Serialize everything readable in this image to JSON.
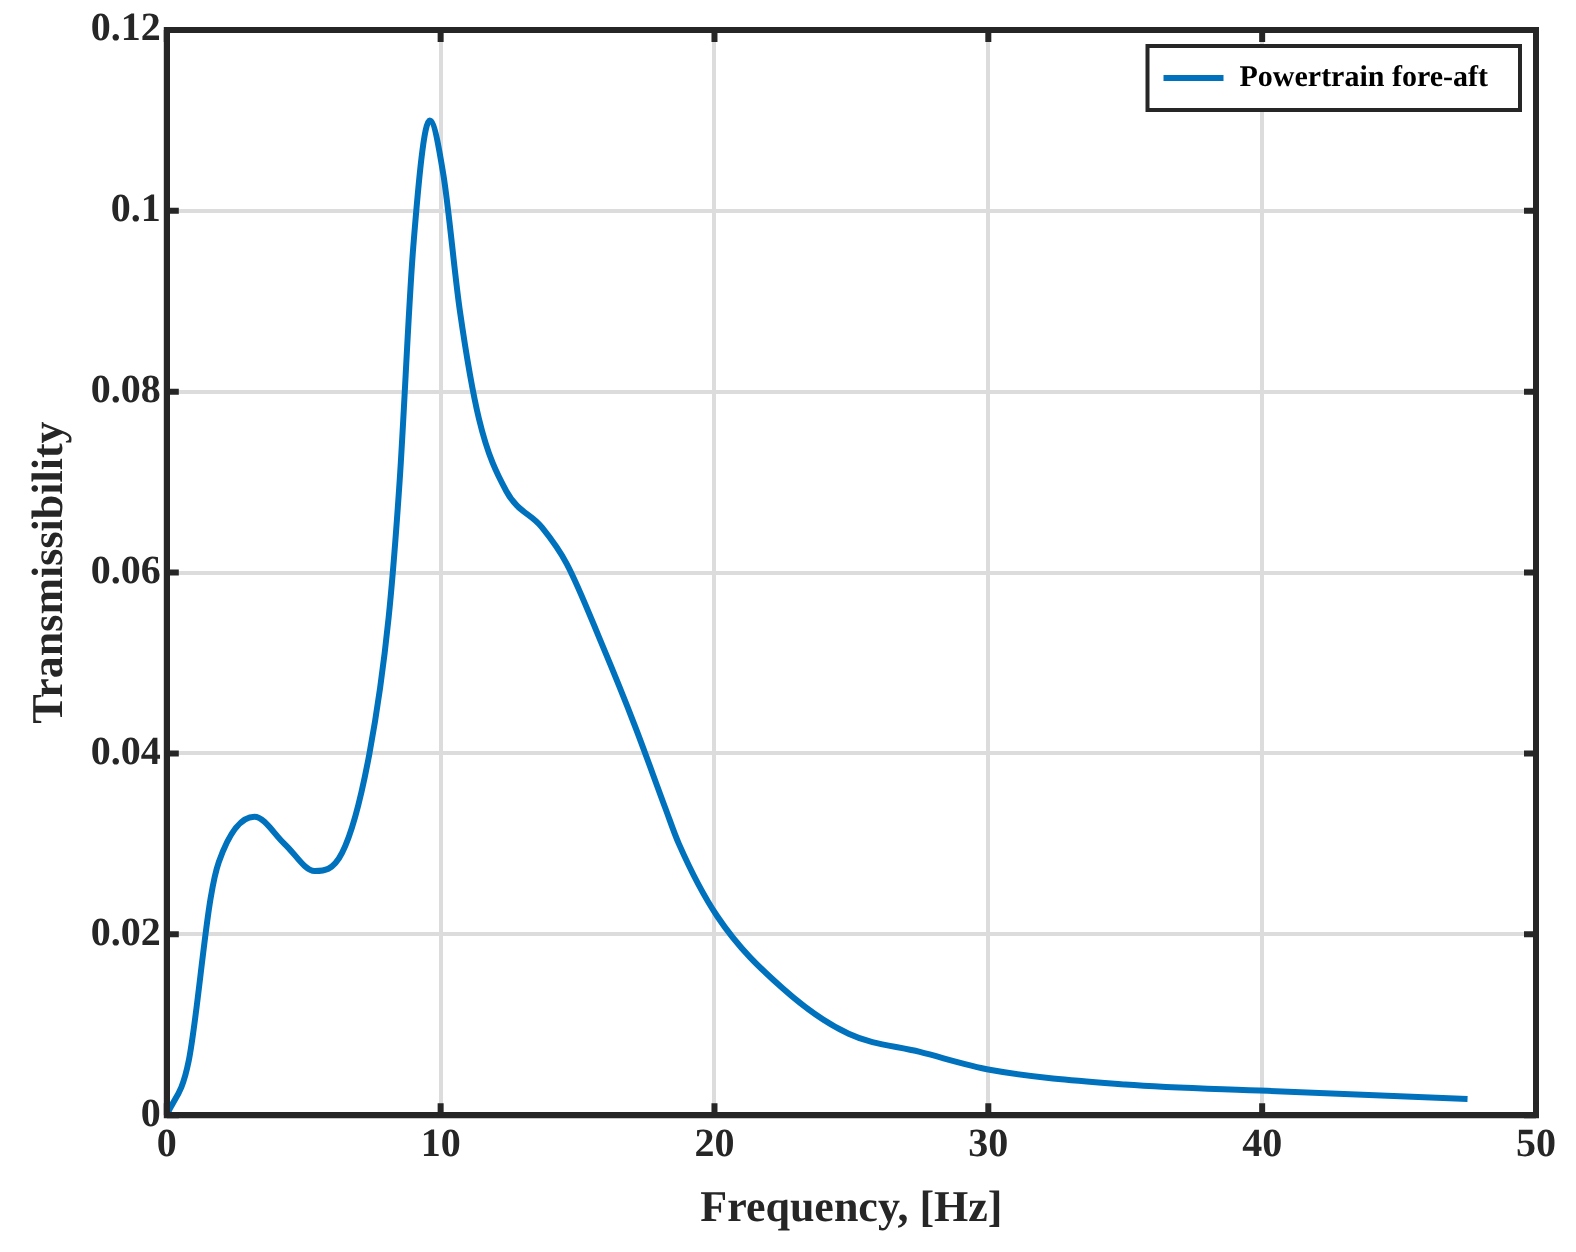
{
  "chart_data": {
    "type": "line",
    "xlabel": "Frequency, [Hz]",
    "ylabel": "Transmissibility",
    "xlim": [
      0,
      50
    ],
    "xticks": [
      0,
      10,
      20,
      30,
      40,
      50
    ],
    "ylim": [
      0,
      0.12
    ],
    "yticks": [
      0,
      0.02,
      0.04,
      0.06,
      0.08,
      0.1,
      0.12
    ],
    "grid": true,
    "legend": "top right",
    "marker": "none",
    "line_style": "solid",
    "series": [
      {
        "name": "Powertrain fore-aft",
        "color": "#0072bd",
        "x": [
          0,
          0.8,
          1.6,
          1.9,
          3.2,
          4.3,
          5.4,
          6.4,
          7.4,
          8.1,
          8.5,
          9.0,
          9.6,
          10.1,
          10.7,
          11.4,
          12.4,
          13.7,
          14.6,
          15.9,
          17.1,
          18.2,
          18.7,
          20.1,
          22.5,
          24.9,
          27.5,
          30.1,
          35.0,
          40.2,
          47.5
        ],
        "values": [
          0,
          0.006,
          0.024,
          0.028,
          0.033,
          0.03,
          0.027,
          0.029,
          0.04,
          0.055,
          0.07,
          0.096,
          0.11,
          0.104,
          0.089,
          0.077,
          0.069,
          0.065,
          0.061,
          0.052,
          0.043,
          0.034,
          0.03,
          0.022,
          0.014,
          0.009,
          0.007,
          0.005,
          0.0034,
          0.0027,
          0.0018
        ]
      }
    ]
  }
}
